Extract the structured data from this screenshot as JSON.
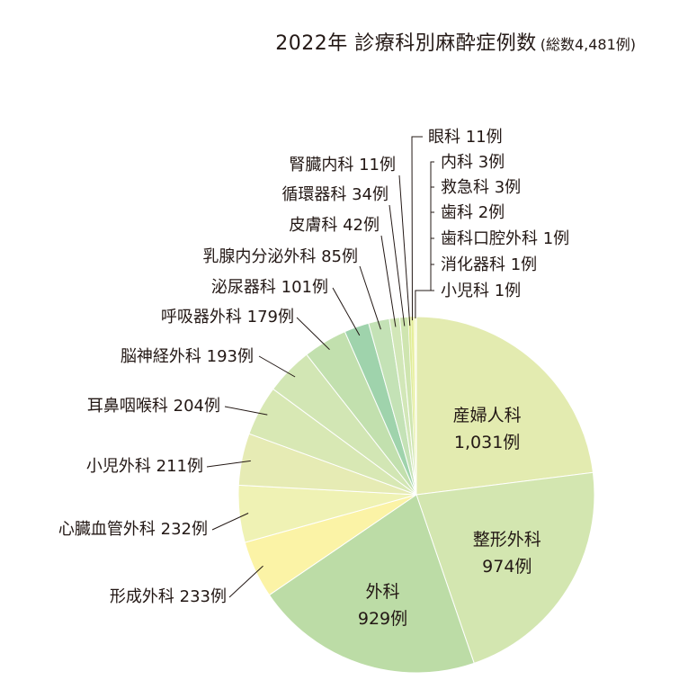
{
  "chart_data": {
    "type": "pie",
    "title": "2022年 診療科別麻酔症例数",
    "subtitle": "(総数4,481例)",
    "categories": [
      "産婦人科",
      "整形外科",
      "外科",
      "形成外科",
      "心臓血管外科",
      "小児外科",
      "耳鼻咽喉科",
      "脳神経外科",
      "呼吸器外科",
      "泌尿器科",
      "乳腺内分泌外科",
      "皮膚科",
      "循環器科",
      "腎臓内科",
      "眼科",
      "内科",
      "救急科",
      "歯科",
      "歯科口腔外科",
      "消化器科",
      "小児科"
    ],
    "values": [
      1031,
      974,
      929,
      233,
      232,
      211,
      204,
      193,
      179,
      101,
      85,
      42,
      34,
      11,
      11,
      3,
      3,
      2,
      1,
      1,
      1
    ],
    "labels": [
      "産婦人科\n1,031例",
      "整形外科\n974例",
      "外科\n929例",
      "形成外科 233例",
      "心臓血管外科 232例",
      "小児外科 211例",
      "耳鼻咽喉科 204例",
      "脳神経外科 193例",
      "呼吸器外科 179例",
      "泌尿器科 101例",
      "乳腺内分泌外科 85例",
      "皮膚科 42例",
      "循環器科 34例",
      "腎臓内科 11例",
      "眼科 11例",
      "内科 3例",
      "救急科 3例",
      "歯科 2例",
      "歯科口腔外科 1例",
      "消化器科 1例",
      "小児科 1例"
    ],
    "colors": [
      "#e3ebb0",
      "#d3e6b0",
      "#bcdca6",
      "#fbf3a6",
      "#eff2b4",
      "#e6ebb4",
      "#d8e8b4",
      "#d2e6b4",
      "#c2e0ae",
      "#9fd3ac",
      "#c4e2b6",
      "#d2e7b8",
      "#cfe5b0",
      "#dfec9a",
      "#e6ef9a",
      "#ecf29c",
      "#edf29c",
      "#eef39c",
      "#eef3a0",
      "#eef3a0",
      "#eef3a0"
    ]
  }
}
